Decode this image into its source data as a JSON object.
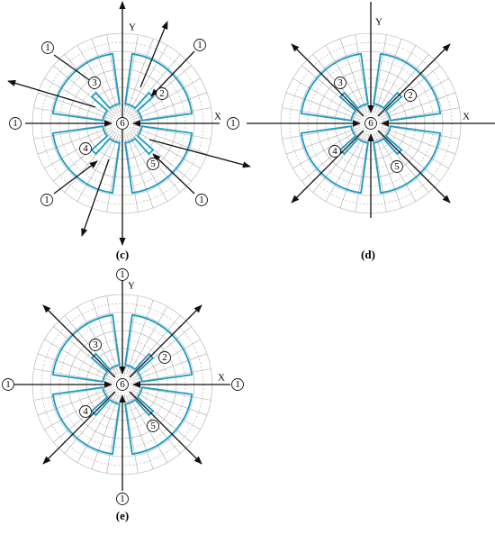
{
  "panels": [
    {
      "caption": "(c)",
      "x_axis": "X",
      "y_axis": "Y",
      "markers": [
        "1",
        "1",
        "1",
        "1",
        "1",
        "1",
        "3",
        "2",
        "4",
        "5",
        "6"
      ]
    },
    {
      "caption": "(d)",
      "x_axis": "X",
      "y_axis": "Y",
      "markers": [
        "3",
        "2",
        "4",
        "5",
        "6"
      ]
    },
    {
      "caption": "(e)",
      "x_axis": "X",
      "y_axis": "Y",
      "markers": [
        "1",
        "1",
        "1",
        "1",
        "3",
        "2",
        "4",
        "5",
        "6"
      ]
    }
  ]
}
